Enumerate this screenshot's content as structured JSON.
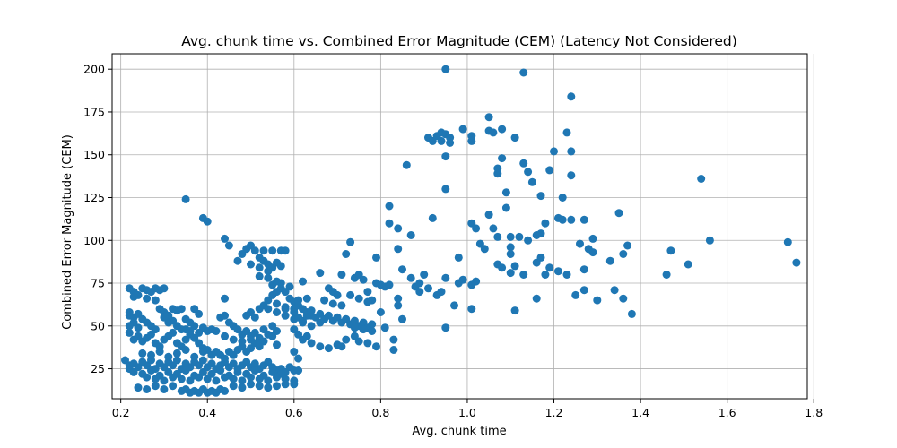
{
  "chart_data": {
    "type": "scatter",
    "title": "Avg. chunk time vs. Combined Error Magnitude (CEM) (Latency Not Considered)",
    "xlabel": "Avg. chunk time",
    "ylabel": "Combined Error Magnitude (CEM)",
    "xlim": [
      0.18,
      1.785
    ],
    "ylim": [
      7.5,
      209
    ],
    "xticks": [
      0.2,
      0.4,
      0.6,
      0.8,
      1.0,
      1.2,
      1.4,
      1.6,
      1.8
    ],
    "yticks": [
      25,
      50,
      75,
      100,
      125,
      150,
      175,
      200
    ],
    "xtick_labels": [
      "0.2",
      "0.4",
      "0.6",
      "0.8",
      "1.0",
      "1.2",
      "1.4",
      "1.6",
      "1.8"
    ],
    "ytick_labels": [
      "25",
      "50",
      "75",
      "100",
      "125",
      "150",
      "175",
      "200"
    ],
    "grid": true,
    "marker_color": "#1f77b4",
    "points": [
      [
        0.21,
        30
      ],
      [
        0.22,
        27
      ],
      [
        0.22,
        25
      ],
      [
        0.23,
        28
      ],
      [
        0.24,
        26
      ],
      [
        0.25,
        29
      ],
      [
        0.26,
        27
      ],
      [
        0.27,
        30
      ],
      [
        0.28,
        25
      ],
      [
        0.29,
        28
      ],
      [
        0.3,
        26
      ],
      [
        0.31,
        29
      ],
      [
        0.32,
        27
      ],
      [
        0.33,
        30
      ],
      [
        0.34,
        25
      ],
      [
        0.35,
        28
      ],
      [
        0.36,
        26
      ],
      [
        0.37,
        29
      ],
      [
        0.38,
        27
      ],
      [
        0.39,
        30
      ],
      [
        0.4,
        26
      ],
      [
        0.41,
        28
      ],
      [
        0.42,
        25
      ],
      [
        0.43,
        27
      ],
      [
        0.44,
        29
      ],
      [
        0.45,
        26
      ],
      [
        0.46,
        28
      ],
      [
        0.47,
        25
      ],
      [
        0.48,
        27
      ],
      [
        0.49,
        29
      ],
      [
        0.5,
        26
      ],
      [
        0.51,
        28
      ],
      [
        0.52,
        25
      ],
      [
        0.53,
        27
      ],
      [
        0.54,
        29
      ],
      [
        0.55,
        26
      ],
      [
        0.56,
        24
      ],
      [
        0.57,
        25
      ],
      [
        0.58,
        23
      ],
      [
        0.59,
        26
      ],
      [
        0.6,
        24
      ],
      [
        0.61,
        24
      ],
      [
        0.23,
        23
      ],
      [
        0.25,
        22
      ],
      [
        0.27,
        24
      ],
      [
        0.29,
        21
      ],
      [
        0.31,
        23
      ],
      [
        0.33,
        22
      ],
      [
        0.35,
        24
      ],
      [
        0.37,
        21
      ],
      [
        0.39,
        23
      ],
      [
        0.41,
        22
      ],
      [
        0.43,
        24
      ],
      [
        0.45,
        21
      ],
      [
        0.47,
        23
      ],
      [
        0.49,
        22
      ],
      [
        0.51,
        24
      ],
      [
        0.53,
        21
      ],
      [
        0.55,
        23
      ],
      [
        0.57,
        22
      ],
      [
        0.26,
        20
      ],
      [
        0.28,
        19
      ],
      [
        0.3,
        18
      ],
      [
        0.32,
        20
      ],
      [
        0.34,
        19
      ],
      [
        0.36,
        18
      ],
      [
        0.38,
        20
      ],
      [
        0.4,
        19
      ],
      [
        0.42,
        18
      ],
      [
        0.44,
        20
      ],
      [
        0.46,
        19
      ],
      [
        0.48,
        18
      ],
      [
        0.5,
        20
      ],
      [
        0.52,
        19
      ],
      [
        0.54,
        18
      ],
      [
        0.56,
        20
      ],
      [
        0.58,
        19
      ],
      [
        0.6,
        18
      ],
      [
        0.24,
        14
      ],
      [
        0.26,
        13
      ],
      [
        0.28,
        15
      ],
      [
        0.3,
        13
      ],
      [
        0.32,
        15
      ],
      [
        0.34,
        12
      ],
      [
        0.35,
        13
      ],
      [
        0.36,
        11
      ],
      [
        0.37,
        12
      ],
      [
        0.38,
        11
      ],
      [
        0.39,
        13
      ],
      [
        0.4,
        11
      ],
      [
        0.41,
        12
      ],
      [
        0.42,
        11
      ],
      [
        0.43,
        13
      ],
      [
        0.44,
        12
      ],
      [
        0.46,
        15
      ],
      [
        0.48,
        14
      ],
      [
        0.5,
        16
      ],
      [
        0.52,
        15
      ],
      [
        0.54,
        14
      ],
      [
        0.56,
        15
      ],
      [
        0.58,
        16
      ],
      [
        0.6,
        16
      ],
      [
        0.22,
        72
      ],
      [
        0.23,
        70
      ],
      [
        0.24,
        68
      ],
      [
        0.25,
        72
      ],
      [
        0.26,
        71
      ],
      [
        0.27,
        70
      ],
      [
        0.28,
        72
      ],
      [
        0.29,
        71
      ],
      [
        0.3,
        72
      ],
      [
        0.23,
        67
      ],
      [
        0.26,
        66
      ],
      [
        0.28,
        65
      ],
      [
        0.22,
        58
      ],
      [
        0.22,
        56
      ],
      [
        0.23,
        55
      ],
      [
        0.24,
        57
      ],
      [
        0.25,
        54
      ],
      [
        0.26,
        52
      ],
      [
        0.27,
        50
      ],
      [
        0.28,
        48
      ],
      [
        0.23,
        52
      ],
      [
        0.22,
        50
      ],
      [
        0.24,
        49
      ],
      [
        0.22,
        46
      ],
      [
        0.24,
        44
      ],
      [
        0.23,
        42
      ],
      [
        0.25,
        41
      ],
      [
        0.26,
        43
      ],
      [
        0.27,
        45
      ],
      [
        0.28,
        40
      ],
      [
        0.29,
        38
      ],
      [
        0.3,
        42
      ],
      [
        0.31,
        44
      ],
      [
        0.32,
        46
      ],
      [
        0.33,
        40
      ],
      [
        0.34,
        38
      ],
      [
        0.35,
        42
      ],
      [
        0.36,
        45
      ],
      [
        0.37,
        43
      ],
      [
        0.38,
        40
      ],
      [
        0.39,
        37
      ],
      [
        0.4,
        36
      ],
      [
        0.42,
        35
      ],
      [
        0.43,
        33
      ],
      [
        0.29,
        60
      ],
      [
        0.3,
        58
      ],
      [
        0.31,
        56
      ],
      [
        0.32,
        60
      ],
      [
        0.33,
        59
      ],
      [
        0.34,
        60
      ],
      [
        0.35,
        54
      ],
      [
        0.36,
        52
      ],
      [
        0.37,
        60
      ],
      [
        0.38,
        57
      ],
      [
        0.31,
        52
      ],
      [
        0.33,
        50
      ],
      [
        0.35,
        48
      ],
      [
        0.37,
        50
      ],
      [
        0.39,
        49
      ],
      [
        0.4,
        47
      ],
      [
        0.41,
        48
      ],
      [
        0.3,
        55
      ],
      [
        0.32,
        53
      ],
      [
        0.34,
        48
      ],
      [
        0.36,
        47
      ],
      [
        0.38,
        46
      ],
      [
        0.25,
        34
      ],
      [
        0.27,
        33
      ],
      [
        0.29,
        35
      ],
      [
        0.31,
        32
      ],
      [
        0.33,
        34
      ],
      [
        0.35,
        36
      ],
      [
        0.37,
        32
      ],
      [
        0.39,
        35
      ],
      [
        0.41,
        33
      ],
      [
        0.44,
        31
      ],
      [
        0.45,
        35
      ],
      [
        0.46,
        33
      ],
      [
        0.47,
        36
      ],
      [
        0.48,
        38
      ],
      [
        0.49,
        35
      ],
      [
        0.5,
        37
      ],
      [
        0.51,
        40
      ],
      [
        0.52,
        38
      ],
      [
        0.53,
        41
      ],
      [
        0.55,
        44
      ],
      [
        0.56,
        39
      ],
      [
        0.42,
        47
      ],
      [
        0.43,
        55
      ],
      [
        0.44,
        56
      ],
      [
        0.45,
        52
      ],
      [
        0.46,
        50
      ],
      [
        0.47,
        48
      ],
      [
        0.48,
        45
      ],
      [
        0.49,
        47
      ],
      [
        0.5,
        44
      ],
      [
        0.51,
        46
      ],
      [
        0.52,
        43
      ],
      [
        0.53,
        48
      ],
      [
        0.44,
        44
      ],
      [
        0.46,
        42
      ],
      [
        0.48,
        41
      ],
      [
        0.5,
        42
      ],
      [
        0.52,
        40
      ],
      [
        0.54,
        45
      ],
      [
        0.56,
        47
      ],
      [
        0.55,
        50
      ],
      [
        0.44,
        66
      ],
      [
        0.49,
        56
      ],
      [
        0.5,
        58
      ],
      [
        0.51,
        55
      ],
      [
        0.52,
        60
      ],
      [
        0.53,
        62
      ],
      [
        0.54,
        65
      ],
      [
        0.55,
        68
      ],
      [
        0.56,
        70
      ],
      [
        0.57,
        72
      ],
      [
        0.58,
        70
      ],
      [
        0.59,
        66
      ],
      [
        0.6,
        64
      ],
      [
        0.61,
        62
      ],
      [
        0.62,
        60
      ],
      [
        0.63,
        58
      ],
      [
        0.64,
        56
      ],
      [
        0.54,
        60
      ],
      [
        0.56,
        58
      ],
      [
        0.58,
        56
      ],
      [
        0.6,
        54
      ],
      [
        0.62,
        52
      ],
      [
        0.64,
        50
      ],
      [
        0.66,
        52
      ],
      [
        0.55,
        74
      ],
      [
        0.57,
        75
      ],
      [
        0.59,
        73
      ],
      [
        0.61,
        65
      ],
      [
        0.63,
        66
      ],
      [
        0.56,
        63
      ],
      [
        0.58,
        61
      ],
      [
        0.6,
        60
      ],
      [
        0.44,
        101
      ],
      [
        0.45,
        97
      ],
      [
        0.47,
        88
      ],
      [
        0.48,
        92
      ],
      [
        0.49,
        95
      ],
      [
        0.5,
        97
      ],
      [
        0.51,
        94
      ],
      [
        0.52,
        90
      ],
      [
        0.53,
        88
      ],
      [
        0.54,
        86
      ],
      [
        0.55,
        84
      ],
      [
        0.56,
        87
      ],
      [
        0.57,
        85
      ],
      [
        0.5,
        86
      ],
      [
        0.52,
        84
      ],
      [
        0.54,
        82
      ],
      [
        0.53,
        94
      ],
      [
        0.55,
        94
      ],
      [
        0.57,
        94
      ],
      [
        0.58,
        94
      ],
      [
        0.52,
        79
      ],
      [
        0.54,
        78
      ],
      [
        0.56,
        76
      ],
      [
        0.35,
        124
      ],
      [
        0.39,
        113
      ],
      [
        0.4,
        111
      ],
      [
        0.58,
        60
      ],
      [
        0.6,
        58
      ],
      [
        0.61,
        55
      ],
      [
        0.62,
        53
      ],
      [
        0.63,
        56
      ],
      [
        0.64,
        59
      ],
      [
        0.65,
        55
      ],
      [
        0.66,
        57
      ],
      [
        0.67,
        54
      ],
      [
        0.68,
        56
      ],
      [
        0.69,
        53
      ],
      [
        0.7,
        55
      ],
      [
        0.71,
        52
      ],
      [
        0.72,
        54
      ],
      [
        0.73,
        51
      ],
      [
        0.74,
        53
      ],
      [
        0.75,
        50
      ],
      [
        0.76,
        52
      ],
      [
        0.77,
        49
      ],
      [
        0.78,
        51
      ],
      [
        0.74,
        49
      ],
      [
        0.76,
        48
      ],
      [
        0.78,
        47
      ],
      [
        0.6,
        48
      ],
      [
        0.61,
        45
      ],
      [
        0.62,
        42
      ],
      [
        0.63,
        44
      ],
      [
        0.64,
        40
      ],
      [
        0.66,
        38
      ],
      [
        0.68,
        37
      ],
      [
        0.7,
        39
      ],
      [
        0.71,
        38
      ],
      [
        0.72,
        42
      ],
      [
        0.74,
        44
      ],
      [
        0.75,
        41
      ],
      [
        0.77,
        40
      ],
      [
        0.79,
        38
      ],
      [
        0.61,
        31
      ],
      [
        0.6,
        35
      ],
      [
        0.62,
        76
      ],
      [
        0.66,
        81
      ],
      [
        0.68,
        72
      ],
      [
        0.69,
        70
      ],
      [
        0.7,
        68
      ],
      [
        0.71,
        80
      ],
      [
        0.72,
        92
      ],
      [
        0.73,
        99
      ],
      [
        0.74,
        78
      ],
      [
        0.75,
        80
      ],
      [
        0.76,
        77
      ],
      [
        0.77,
        70
      ],
      [
        0.78,
        65
      ],
      [
        0.79,
        75
      ],
      [
        0.8,
        74
      ],
      [
        0.81,
        73
      ],
      [
        0.82,
        74
      ],
      [
        0.67,
        65
      ],
      [
        0.69,
        63
      ],
      [
        0.71,
        62
      ],
      [
        0.73,
        68
      ],
      [
        0.75,
        66
      ],
      [
        0.77,
        64
      ],
      [
        0.8,
        58
      ],
      [
        0.81,
        49
      ],
      [
        0.79,
        90
      ],
      [
        0.82,
        110
      ],
      [
        0.82,
        120
      ],
      [
        0.84,
        95
      ],
      [
        0.85,
        83
      ],
      [
        0.86,
        144
      ],
      [
        0.87,
        103
      ],
      [
        0.88,
        73
      ],
      [
        0.89,
        75
      ],
      [
        0.9,
        80
      ],
      [
        0.92,
        113
      ],
      [
        0.84,
        107
      ],
      [
        0.87,
        78
      ],
      [
        0.89,
        70
      ],
      [
        0.91,
        72
      ],
      [
        0.93,
        68
      ],
      [
        0.84,
        62
      ],
      [
        0.85,
        54
      ],
      [
        0.83,
        42
      ],
      [
        0.83,
        36
      ],
      [
        0.84,
        66
      ],
      [
        0.91,
        160
      ],
      [
        0.92,
        158
      ],
      [
        0.93,
        161
      ],
      [
        0.94,
        163
      ],
      [
        0.94,
        158
      ],
      [
        0.95,
        162
      ],
      [
        0.96,
        160
      ],
      [
        0.96,
        157
      ],
      [
        0.95,
        149
      ],
      [
        0.95,
        130
      ],
      [
        0.95,
        78
      ],
      [
        0.94,
        70
      ],
      [
        0.95,
        49
      ],
      [
        0.97,
        62
      ],
      [
        0.98,
        75
      ],
      [
        0.99,
        77
      ],
      [
        0.98,
        90
      ],
      [
        0.99,
        165
      ],
      [
        1.01,
        158
      ],
      [
        1.01,
        161
      ],
      [
        1.01,
        110
      ],
      [
        1.02,
        107
      ],
      [
        1.02,
        76
      ],
      [
        1.01,
        74
      ],
      [
        1.01,
        60
      ],
      [
        1.03,
        98
      ],
      [
        1.04,
        95
      ],
      [
        1.05,
        172
      ],
      [
        1.05,
        164
      ],
      [
        1.05,
        115
      ],
      [
        1.06,
        163
      ],
      [
        1.06,
        107
      ],
      [
        1.07,
        142
      ],
      [
        1.07,
        139
      ],
      [
        1.07,
        102
      ],
      [
        1.07,
        86
      ],
      [
        1.08,
        165
      ],
      [
        1.08,
        148
      ],
      [
        1.08,
        84
      ],
      [
        1.09,
        128
      ],
      [
        1.09,
        119
      ],
      [
        1.1,
        102
      ],
      [
        1.1,
        96
      ],
      [
        1.1,
        92
      ],
      [
        1.1,
        81
      ],
      [
        1.11,
        160
      ],
      [
        1.11,
        85
      ],
      [
        1.11,
        59
      ],
      [
        1.12,
        102
      ],
      [
        1.13,
        198
      ],
      [
        1.13,
        145
      ],
      [
        1.13,
        80
      ],
      [
        1.14,
        140
      ],
      [
        1.14,
        100
      ],
      [
        1.15,
        134
      ],
      [
        1.16,
        87
      ],
      [
        1.16,
        103
      ],
      [
        1.16,
        66
      ],
      [
        1.17,
        90
      ],
      [
        1.17,
        104
      ],
      [
        1.17,
        126
      ],
      [
        1.18,
        110
      ],
      [
        1.18,
        80
      ],
      [
        1.19,
        141
      ],
      [
        1.19,
        84
      ],
      [
        1.2,
        152
      ],
      [
        1.21,
        113
      ],
      [
        1.21,
        82
      ],
      [
        1.22,
        125
      ],
      [
        1.22,
        112
      ],
      [
        1.23,
        163
      ],
      [
        1.23,
        80
      ],
      [
        1.24,
        184
      ],
      [
        1.24,
        152
      ],
      [
        1.24,
        138
      ],
      [
        1.24,
        112
      ],
      [
        1.25,
        68
      ],
      [
        1.26,
        98
      ],
      [
        1.27,
        112
      ],
      [
        1.27,
        83
      ],
      [
        1.27,
        71
      ],
      [
        1.28,
        95
      ],
      [
        1.29,
        101
      ],
      [
        1.29,
        93
      ],
      [
        1.3,
        65
      ],
      [
        0.95,
        200
      ],
      [
        1.33,
        88
      ],
      [
        1.34,
        71
      ],
      [
        1.35,
        116
      ],
      [
        1.36,
        92
      ],
      [
        1.36,
        66
      ],
      [
        1.37,
        97
      ],
      [
        1.38,
        57
      ],
      [
        1.46,
        80
      ],
      [
        1.47,
        94
      ],
      [
        1.51,
        86
      ],
      [
        1.54,
        136
      ],
      [
        1.56,
        100
      ],
      [
        1.74,
        99
      ],
      [
        1.76,
        87
      ]
    ]
  }
}
